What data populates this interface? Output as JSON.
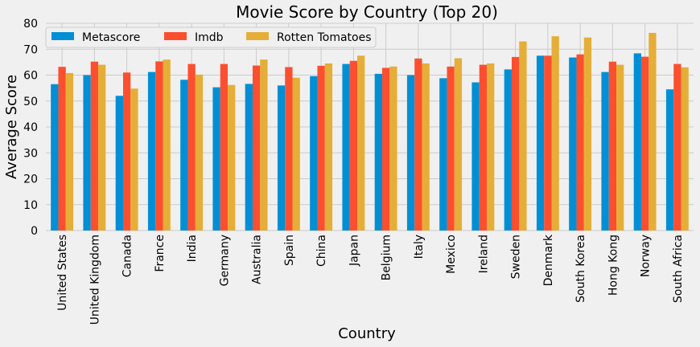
{
  "chart_data": {
    "type": "bar",
    "title": "Movie Score by Country (Top 20)",
    "xlabel": "Country",
    "ylabel": "Average Score",
    "ylim": [
      0,
      80
    ],
    "yticks": [
      0,
      10,
      20,
      30,
      40,
      50,
      60,
      70,
      80
    ],
    "grid": true,
    "legend_position": "top-left",
    "categories": [
      "United States",
      "United Kingdom",
      "Canada",
      "France",
      "India",
      "Germany",
      "Australia",
      "Spain",
      "China",
      "Japan",
      "Belgium",
      "Italy",
      "Mexico",
      "Ireland",
      "Sweden",
      "Denmark",
      "South Korea",
      "Hong Kong",
      "Norway",
      "South Africa"
    ],
    "series": [
      {
        "name": "Metascore",
        "color": "#008fd5",
        "values": [
          56.5,
          60.0,
          52.0,
          61.2,
          58.2,
          55.3,
          56.6,
          56.0,
          59.6,
          64.3,
          60.5,
          60.0,
          58.8,
          57.2,
          62.2,
          67.5,
          66.8,
          61.2,
          68.4,
          54.5
        ]
      },
      {
        "name": "Imdb",
        "color": "#fc4f30",
        "values": [
          63.2,
          65.2,
          61.0,
          65.3,
          64.3,
          64.3,
          63.7,
          63.1,
          63.6,
          65.5,
          62.8,
          66.4,
          63.3,
          64.0,
          67.0,
          67.5,
          68.0,
          65.2,
          67.1,
          64.3
        ]
      },
      {
        "name": "Rotten Tomatoes",
        "color": "#e5ae38",
        "values": [
          60.8,
          64.0,
          54.8,
          66.0,
          60.2,
          56.2,
          66.0,
          59.0,
          64.5,
          67.5,
          63.3,
          64.5,
          66.5,
          64.5,
          73.0,
          75.0,
          74.5,
          64.0,
          76.3,
          63.0
        ]
      }
    ]
  }
}
